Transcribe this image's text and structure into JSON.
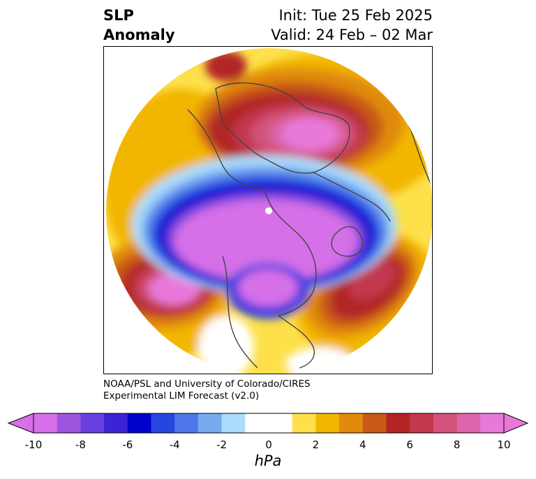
{
  "title": {
    "left_line1": "SLP",
    "left_line2": "Anomaly",
    "right_line1": "Init: Tue 25 Feb 2025",
    "right_line2": "Valid: 24 Feb – 02 Mar"
  },
  "credit": {
    "line1": "NOAA/PSL and University of Colorado/CIRES",
    "line2": "Experimental LIM Forecast (v2.0)"
  },
  "colorbar": {
    "units": "hPa",
    "ticks": [
      "-10",
      "-8",
      "-6",
      "-4",
      "-2",
      "0",
      "2",
      "4",
      "6",
      "8",
      "10"
    ],
    "levels": [
      -10,
      -9,
      -8,
      -7,
      -6,
      -5,
      -4,
      -3,
      -2,
      -1,
      1,
      2,
      3,
      4,
      5,
      6,
      7,
      8,
      9,
      10
    ],
    "colors": [
      "#d66fe8",
      "#9d55e0",
      "#6a3fe0",
      "#3b23d6",
      "#0000cc",
      "#2646e0",
      "#4d77e8",
      "#76aaf0",
      "#abdcfb",
      "#ffffff",
      "#ffffff",
      "#fee04a",
      "#f2b600",
      "#e08a0e",
      "#c85918",
      "#b22525",
      "#c2384d",
      "#d2527a",
      "#dc66ab",
      "#e879da"
    ],
    "over_color": "#e879da",
    "under_color": "#d66fe8"
  },
  "map": {
    "projection": "north-polar-stereographic",
    "field": "sea-level-pressure-anomaly",
    "features": [
      {
        "name": "central-low-arctic-north-america",
        "sign": "negative",
        "peak": "< -10"
      },
      {
        "name": "low-pacific-aleutian",
        "sign": "negative",
        "peak": "< -10"
      },
      {
        "name": "high-europe-scandinavia",
        "sign": "positive",
        "peak": "> 10"
      },
      {
        "name": "high-north-pacific",
        "sign": "positive",
        "peak": "> 10"
      },
      {
        "name": "high-north-atlantic",
        "sign": "positive",
        "peak": "8"
      }
    ]
  }
}
